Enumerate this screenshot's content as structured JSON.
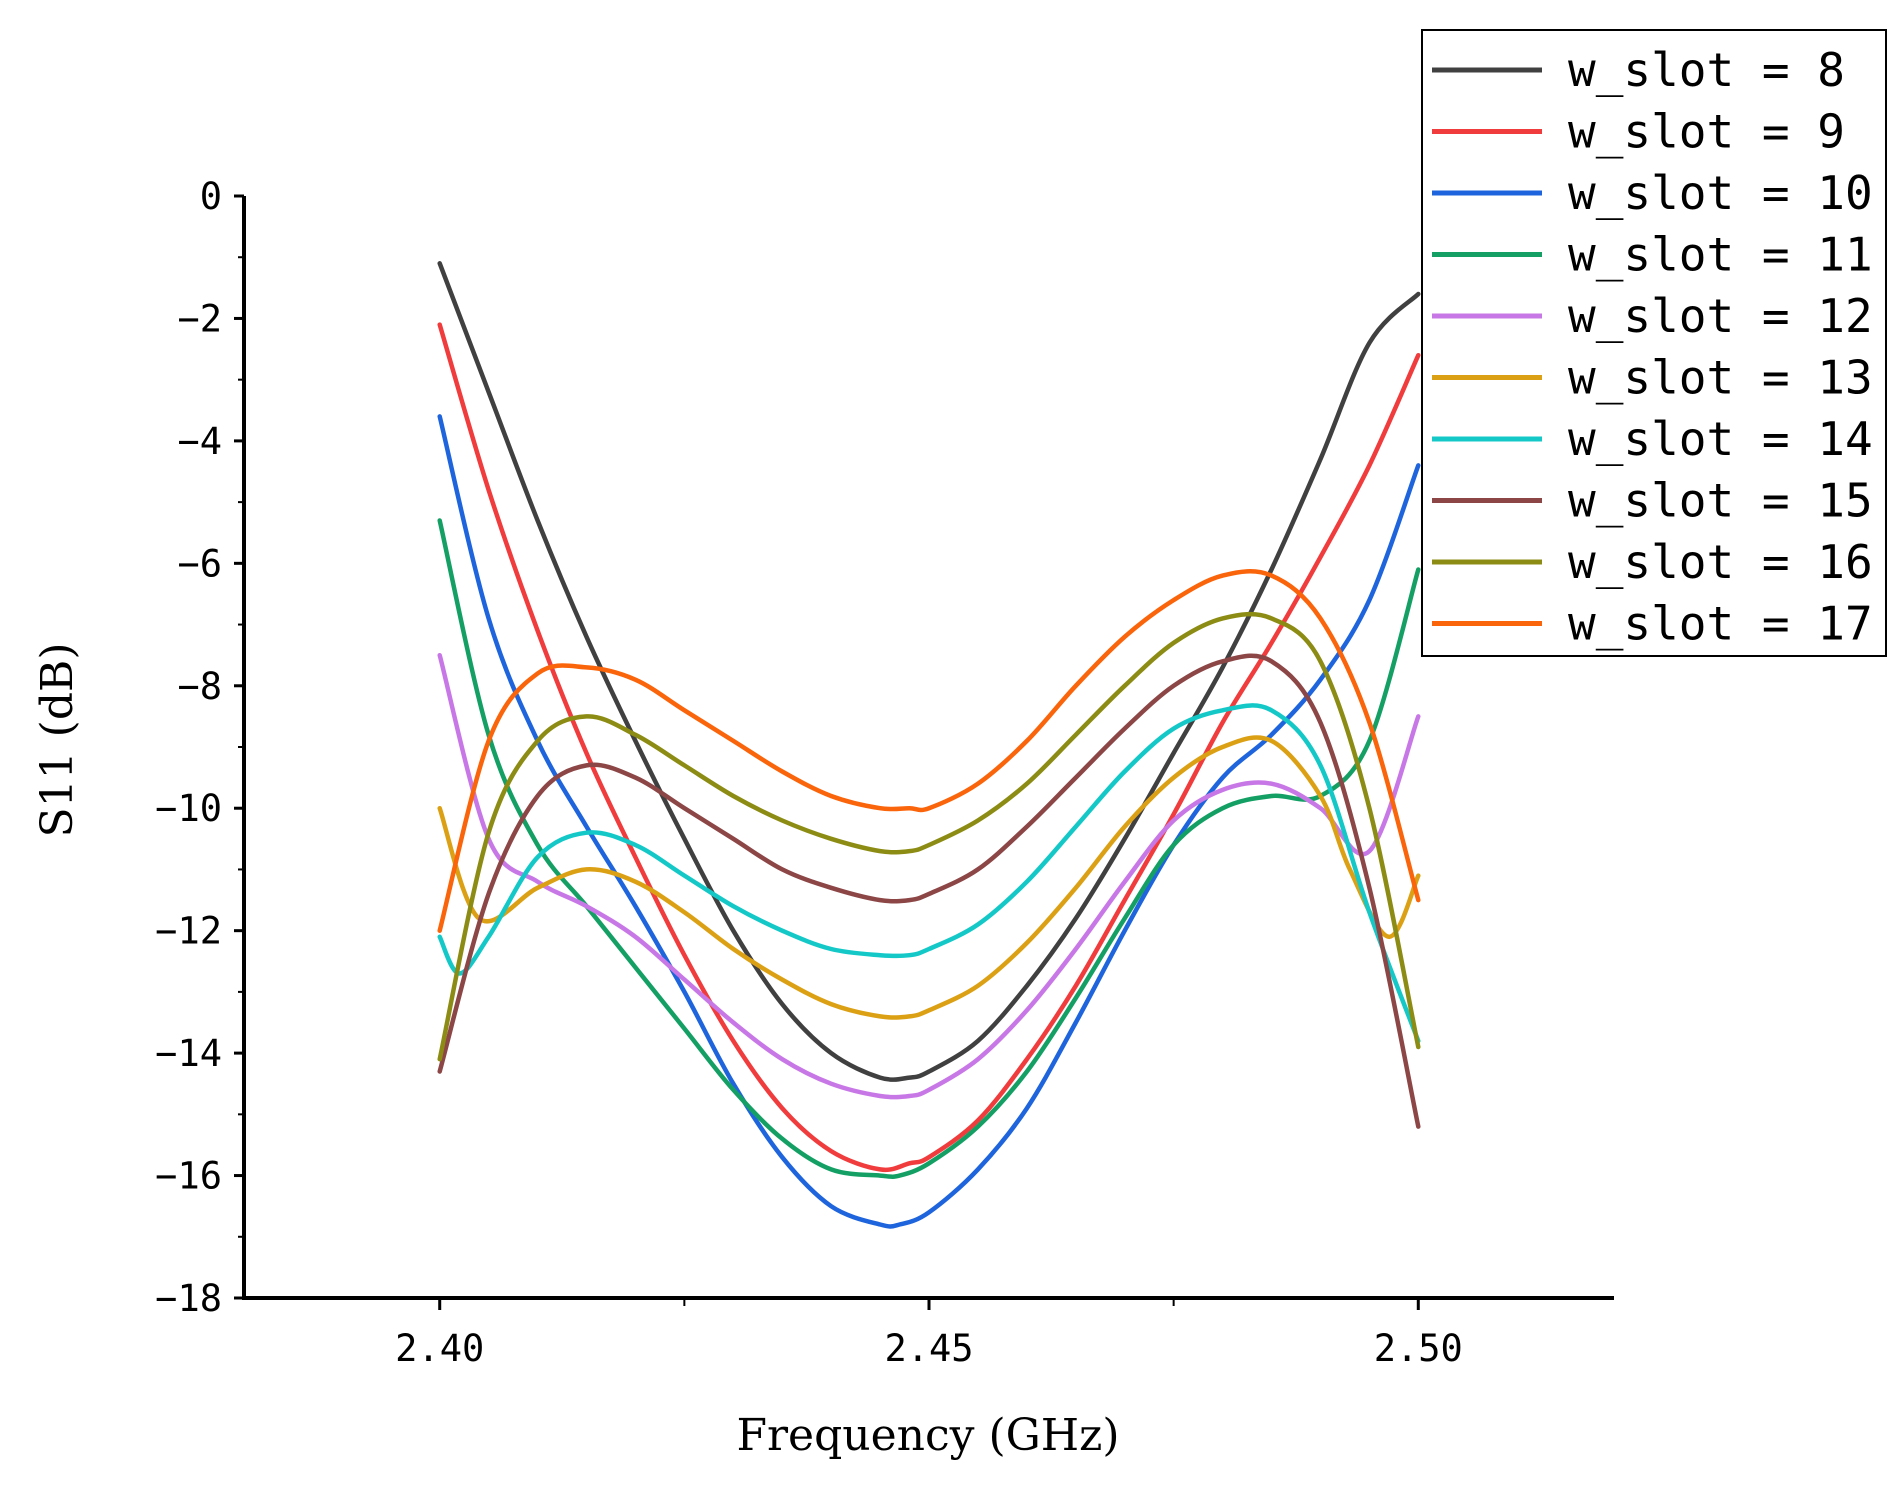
{
  "chart_data": {
    "type": "line",
    "title": "",
    "xlabel": "Frequency (GHz)",
    "ylabel": "S11 (dB)",
    "xlim": [
      2.38,
      2.52
    ],
    "ylim": [
      -18,
      0
    ],
    "xticks": [
      2.4,
      2.45,
      2.5
    ],
    "xtick_labels": [
      "2.40",
      "2.45",
      "2.50"
    ],
    "yticks": [
      0,
      -2,
      -4,
      -6,
      -8,
      -10,
      -12,
      -14,
      -16,
      -18
    ],
    "ytick_labels": [
      "0",
      "−2",
      "−4",
      "−6",
      "−8",
      "−10",
      "−12",
      "−14",
      "−16",
      "−18"
    ],
    "legend_position": "top-right",
    "series": [
      {
        "name": "w_slot = 8",
        "color": "#404040",
        "x": [
          2.4,
          2.405,
          2.41,
          2.415,
          2.42,
          2.425,
          2.43,
          2.435,
          2.44,
          2.445,
          2.448,
          2.45,
          2.455,
          2.46,
          2.465,
          2.47,
          2.475,
          2.48,
          2.485,
          2.49,
          2.495,
          2.5
        ],
        "y": [
          -1.1,
          -3.2,
          -5.3,
          -7.2,
          -8.9,
          -10.5,
          -12.0,
          -13.2,
          -14.0,
          -14.4,
          -14.4,
          -14.3,
          -13.8,
          -12.9,
          -11.8,
          -10.5,
          -9.1,
          -7.7,
          -6.1,
          -4.3,
          -2.4,
          -1.6
        ]
      },
      {
        "name": "w_slot = 9",
        "color": "#f03c3c",
        "x": [
          2.4,
          2.405,
          2.41,
          2.415,
          2.42,
          2.425,
          2.43,
          2.435,
          2.44,
          2.445,
          2.448,
          2.45,
          2.455,
          2.46,
          2.465,
          2.47,
          2.475,
          2.48,
          2.485,
          2.49,
          2.495,
          2.5
        ],
        "y": [
          -2.1,
          -4.8,
          -7.1,
          -9.1,
          -10.8,
          -12.4,
          -13.8,
          -14.9,
          -15.6,
          -15.9,
          -15.8,
          -15.7,
          -15.1,
          -14.1,
          -12.9,
          -11.5,
          -10.1,
          -8.6,
          -7.3,
          -5.9,
          -4.4,
          -2.6
        ]
      },
      {
        "name": "w_slot = 10",
        "color": "#1e64dc",
        "x": [
          2.4,
          2.405,
          2.41,
          2.415,
          2.42,
          2.425,
          2.43,
          2.435,
          2.44,
          2.445,
          2.447,
          2.45,
          2.455,
          2.46,
          2.465,
          2.47,
          2.475,
          2.48,
          2.485,
          2.49,
          2.495,
          2.5
        ],
        "y": [
          -3.6,
          -6.9,
          -8.9,
          -10.3,
          -11.6,
          -13.0,
          -14.5,
          -15.7,
          -16.5,
          -16.8,
          -16.8,
          -16.6,
          -15.9,
          -14.9,
          -13.5,
          -12.0,
          -10.6,
          -9.5,
          -8.8,
          -7.9,
          -6.6,
          -4.4
        ]
      },
      {
        "name": "w_slot = 11",
        "color": "#14a064",
        "x": [
          2.4,
          2.405,
          2.41,
          2.415,
          2.42,
          2.425,
          2.43,
          2.435,
          2.44,
          2.445,
          2.447,
          2.45,
          2.455,
          2.46,
          2.465,
          2.47,
          2.475,
          2.48,
          2.485,
          2.49,
          2.495,
          2.5
        ],
        "y": [
          -5.3,
          -8.8,
          -10.6,
          -11.6,
          -12.6,
          -13.6,
          -14.6,
          -15.4,
          -15.9,
          -16.0,
          -16.0,
          -15.8,
          -15.2,
          -14.3,
          -13.1,
          -11.8,
          -10.6,
          -10.0,
          -9.8,
          -9.8,
          -8.9,
          -6.1
        ]
      },
      {
        "name": "w_slot = 12",
        "color": "#c878e6",
        "x": [
          2.4,
          2.405,
          2.41,
          2.415,
          2.42,
          2.425,
          2.43,
          2.435,
          2.44,
          2.445,
          2.448,
          2.45,
          2.455,
          2.46,
          2.465,
          2.47,
          2.475,
          2.48,
          2.485,
          2.49,
          2.495,
          2.5
        ],
        "y": [
          -7.5,
          -10.5,
          -11.2,
          -11.6,
          -12.1,
          -12.8,
          -13.5,
          -14.1,
          -14.5,
          -14.7,
          -14.7,
          -14.6,
          -14.1,
          -13.3,
          -12.3,
          -11.2,
          -10.2,
          -9.7,
          -9.6,
          -10.0,
          -10.7,
          -8.5
        ]
      },
      {
        "name": "w_slot = 13",
        "color": "#dca014",
        "x": [
          2.4,
          2.404,
          2.41,
          2.415,
          2.42,
          2.425,
          2.43,
          2.435,
          2.44,
          2.445,
          2.448,
          2.45,
          2.455,
          2.46,
          2.465,
          2.47,
          2.475,
          2.48,
          2.485,
          2.49,
          2.493,
          2.497,
          2.5
        ],
        "y": [
          -10.0,
          -11.8,
          -11.3,
          -11.0,
          -11.2,
          -11.7,
          -12.3,
          -12.8,
          -13.2,
          -13.4,
          -13.4,
          -13.3,
          -12.9,
          -12.2,
          -11.3,
          -10.3,
          -9.5,
          -9.0,
          -8.9,
          -9.8,
          -11.0,
          -12.1,
          -11.1
        ]
      },
      {
        "name": "w_slot = 14",
        "color": "#14c8c8",
        "x": [
          2.4,
          2.402,
          2.405,
          2.41,
          2.415,
          2.42,
          2.425,
          2.43,
          2.435,
          2.44,
          2.445,
          2.448,
          2.45,
          2.455,
          2.46,
          2.465,
          2.47,
          2.475,
          2.48,
          2.485,
          2.49,
          2.495,
          2.5
        ],
        "y": [
          -12.1,
          -12.7,
          -12.1,
          -10.8,
          -10.4,
          -10.6,
          -11.1,
          -11.6,
          -12.0,
          -12.3,
          -12.4,
          -12.4,
          -12.3,
          -11.9,
          -11.2,
          -10.3,
          -9.4,
          -8.7,
          -8.4,
          -8.4,
          -9.3,
          -11.7,
          -13.8
        ]
      },
      {
        "name": "w_slot = 15",
        "color": "#8c4646",
        "x": [
          2.4,
          2.405,
          2.41,
          2.415,
          2.42,
          2.425,
          2.43,
          2.435,
          2.44,
          2.445,
          2.448,
          2.45,
          2.455,
          2.46,
          2.465,
          2.47,
          2.475,
          2.48,
          2.485,
          2.49,
          2.495,
          2.5
        ],
        "y": [
          -14.3,
          -11.4,
          -9.8,
          -9.3,
          -9.5,
          -10.0,
          -10.5,
          -11.0,
          -11.3,
          -11.5,
          -11.5,
          -11.4,
          -11.0,
          -10.3,
          -9.5,
          -8.7,
          -8.0,
          -7.6,
          -7.6,
          -8.6,
          -11.3,
          -15.2
        ]
      },
      {
        "name": "w_slot = 16",
        "color": "#8c8c14",
        "x": [
          2.4,
          2.405,
          2.41,
          2.415,
          2.42,
          2.425,
          2.43,
          2.435,
          2.44,
          2.445,
          2.448,
          2.45,
          2.455,
          2.46,
          2.465,
          2.47,
          2.475,
          2.48,
          2.485,
          2.49,
          2.495,
          2.5
        ],
        "y": [
          -14.1,
          -10.4,
          -8.9,
          -8.5,
          -8.8,
          -9.3,
          -9.8,
          -10.2,
          -10.5,
          -10.7,
          -10.7,
          -10.6,
          -10.2,
          -9.6,
          -8.8,
          -8.0,
          -7.3,
          -6.9,
          -6.9,
          -7.6,
          -10.0,
          -13.9
        ]
      },
      {
        "name": "w_slot = 17",
        "color": "#fa640a",
        "x": [
          2.4,
          2.405,
          2.41,
          2.415,
          2.42,
          2.425,
          2.43,
          2.435,
          2.44,
          2.445,
          2.448,
          2.45,
          2.455,
          2.46,
          2.465,
          2.47,
          2.475,
          2.48,
          2.485,
          2.49,
          2.495,
          2.5
        ],
        "y": [
          -12.0,
          -8.9,
          -7.8,
          -7.7,
          -7.9,
          -8.4,
          -8.9,
          -9.4,
          -9.8,
          -10.0,
          -10.0,
          -10.0,
          -9.6,
          -8.9,
          -8.0,
          -7.2,
          -6.6,
          -6.2,
          -6.2,
          -6.9,
          -8.6,
          -11.5
        ]
      }
    ]
  }
}
